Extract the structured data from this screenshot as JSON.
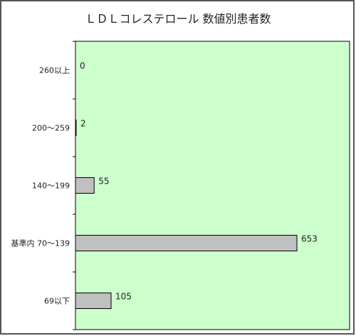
{
  "chart_data": {
    "type": "bar",
    "orientation": "horizontal",
    "title": "ＬＤＬコレステロール 数値別患者数",
    "xlabel": "",
    "ylabel": "",
    "categories": [
      "260以上",
      "200～259",
      "140～199",
      "基準内 70～139",
      "69以下"
    ],
    "values": [
      0,
      2,
      55,
      653,
      105
    ],
    "xlim": [
      0,
      700
    ],
    "grid": false,
    "legend": "none",
    "colors": {
      "plot_background": "#ccffcc",
      "bar_fill": "#c0c0c0",
      "bar_stroke": "#000000",
      "frame_border": "#555555"
    }
  }
}
